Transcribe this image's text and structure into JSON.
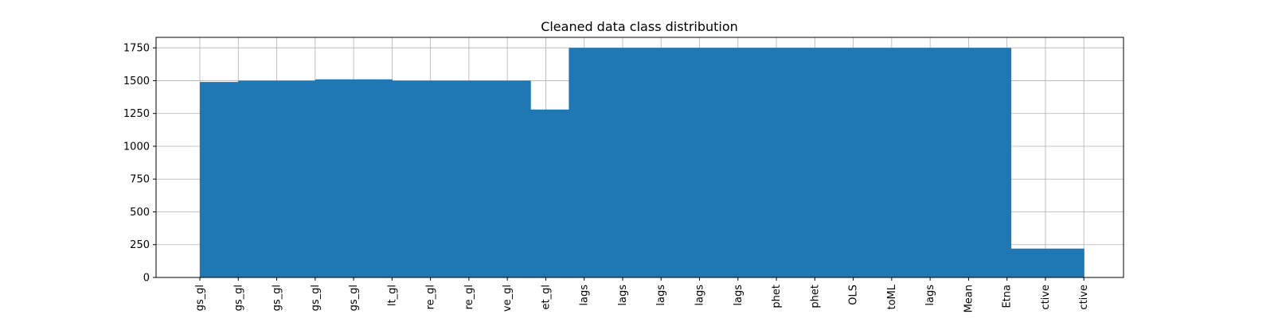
{
  "chart_data": {
    "type": "bar",
    "title": "Cleaned data class distribution",
    "xlabel": "",
    "ylabel": "",
    "ylim": [
      0,
      1830
    ],
    "grid": true,
    "bar_color": "#1f77b4",
    "grid_color": "#b0b0b0",
    "yticks": [
      0,
      250,
      500,
      750,
      1000,
      1250,
      1500,
      1750
    ],
    "x_tick_labels": [
      "gs_gl",
      "gs_gl",
      "gs_gl",
      "gs_gl",
      "gs_gl",
      "lt_gl",
      "re_gl",
      "re_gl",
      "ve_gl",
      "et_gl",
      "lags",
      "lags",
      "lags",
      "lags",
      "lags",
      "phet",
      "phet",
      "OLS",
      "toML",
      "lags",
      "Mean",
      "Etna",
      "ctive",
      "ctive"
    ],
    "steps": [
      {
        "x": 0,
        "value": 1490
      },
      {
        "x": 1,
        "value": 1500
      },
      {
        "x": 3,
        "value": 1510
      },
      {
        "x": 5,
        "value": 1500
      },
      {
        "x": 8.6,
        "value": 1280
      },
      {
        "x": 9.6,
        "value": 1750
      },
      {
        "x": 21.1,
        "value": 220
      },
      {
        "x": 23,
        "value": null
      }
    ]
  }
}
